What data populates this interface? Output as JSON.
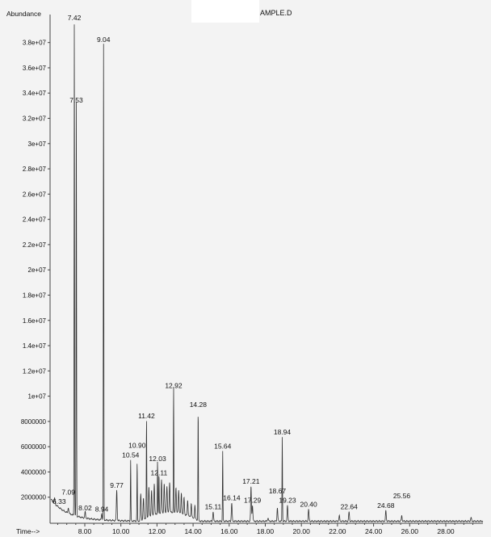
{
  "chart_data": {
    "type": "line",
    "title": "AMPLE.D",
    "ylabel": "Abundance",
    "xlabel": "Time-->",
    "xlim": [
      6.08,
      30.06
    ],
    "ylim": [
      0,
      40000000
    ],
    "grid": false,
    "x_ticks": [
      8,
      10,
      12,
      14,
      16,
      18,
      20,
      22,
      24,
      26,
      28
    ],
    "x_tick_labels": [
      "8.00",
      "10.00",
      "12.00",
      "14.00",
      "16.00",
      "18.00",
      "20.00",
      "22.00",
      "24.00",
      "26.00",
      "28.00"
    ],
    "y_ticks": [
      2000000,
      4000000,
      6000000,
      8000000,
      10000000,
      12000000,
      14000000,
      16000000,
      18000000,
      20000000,
      22000000,
      24000000,
      26000000,
      28000000,
      30000000,
      32000000,
      34000000,
      36000000,
      38000000
    ],
    "y_tick_labels": [
      "2000000",
      "4000000",
      "6000000",
      "8000000",
      "1e+07",
      "1.2e+07",
      "1.4e+07",
      "1.6e+07",
      "1.8e+07",
      "2e+07",
      "2.2e+07",
      "2.4e+07",
      "2.6e+07",
      "2.8e+07",
      "3e+07",
      "3.2e+07",
      "3.4e+07",
      "3.6e+07",
      "3.8e+07"
    ],
    "peaks": [
      {
        "label": "6.33",
        "rt": 6.33,
        "abundance": 1200000
      },
      {
        "label": "7.09",
        "rt": 7.09,
        "abundance": 800000
      },
      {
        "label": "7.42",
        "rt": 7.42,
        "abundance": 39500000
      },
      {
        "label": "7.53",
        "rt": 7.53,
        "abundance": 33000000
      },
      {
        "label": "8.02",
        "rt": 8.02,
        "abundance": 700000
      },
      {
        "label": "8.94",
        "rt": 8.94,
        "abundance": 600000
      },
      {
        "label": "9.04",
        "rt": 9.04,
        "abundance": 37800000
      },
      {
        "label": "9.77",
        "rt": 9.77,
        "abundance": 2500000
      },
      {
        "label": "10.54",
        "rt": 10.54,
        "abundance": 4900000
      },
      {
        "label": "10.90",
        "rt": 10.9,
        "abundance": 4700000
      },
      {
        "label": "11.42",
        "rt": 11.42,
        "abundance": 8000000
      },
      {
        "label": "12.03",
        "rt": 12.03,
        "abundance": 4600000
      },
      {
        "label": "12.11",
        "rt": 12.11,
        "abundance": 3500000
      },
      {
        "label": "12.92",
        "rt": 12.92,
        "abundance": 10400000
      },
      {
        "label": "14.28",
        "rt": 14.28,
        "abundance": 8900000
      },
      {
        "label": "15.11",
        "rt": 15.11,
        "abundance": 800000
      },
      {
        "label": "15.64",
        "rt": 15.64,
        "abundance": 5600000
      },
      {
        "label": "16.14",
        "rt": 16.14,
        "abundance": 1500000
      },
      {
        "label": "17.21",
        "rt": 17.21,
        "abundance": 2800000
      },
      {
        "label": "17.29",
        "rt": 17.29,
        "abundance": 1300000
      },
      {
        "label": "18.67",
        "rt": 18.67,
        "abundance": 1100000
      },
      {
        "label": "18.94",
        "rt": 18.94,
        "abundance": 6700000
      },
      {
        "label": "19.23",
        "rt": 19.23,
        "abundance": 1300000
      },
      {
        "label": "20.40",
        "rt": 20.4,
        "abundance": 1000000
      },
      {
        "label": "22.64",
        "rt": 22.64,
        "abundance": 800000
      },
      {
        "label": "24.68",
        "rt": 24.68,
        "abundance": 900000
      },
      {
        "label": "25.56",
        "rt": 25.56,
        "abundance": 500000
      }
    ],
    "unlabeled_peaks": [
      {
        "rt": 11.1,
        "abundance": 2200000
      },
      {
        "rt": 11.25,
        "abundance": 1800000
      },
      {
        "rt": 11.55,
        "abundance": 2600000
      },
      {
        "rt": 11.7,
        "abundance": 2300000
      },
      {
        "rt": 11.85,
        "abundance": 2800000
      },
      {
        "rt": 12.25,
        "abundance": 3000000
      },
      {
        "rt": 12.4,
        "abundance": 2700000
      },
      {
        "rt": 12.55,
        "abundance": 2500000
      },
      {
        "rt": 12.7,
        "abundance": 2800000
      },
      {
        "rt": 13.05,
        "abundance": 2400000
      },
      {
        "rt": 13.2,
        "abundance": 2200000
      },
      {
        "rt": 13.35,
        "abundance": 2000000
      },
      {
        "rt": 13.5,
        "abundance": 1700000
      },
      {
        "rt": 13.7,
        "abundance": 1500000
      },
      {
        "rt": 13.9,
        "abundance": 1300000
      },
      {
        "rt": 14.1,
        "abundance": 1200000
      },
      {
        "rt": 22.1,
        "abundance": 500000
      },
      {
        "rt": 18.15,
        "abundance": 300000
      },
      {
        "rt": 29.4,
        "abundance": 350000
      }
    ]
  }
}
